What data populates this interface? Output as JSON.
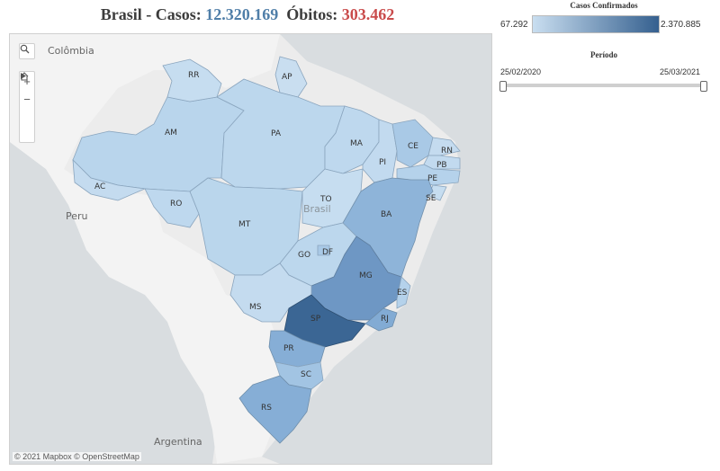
{
  "header": {
    "prefix": "Brasil - Casos: ",
    "cases": "12.320.169",
    "deaths_label": "  Óbitos: ",
    "deaths": "303.462"
  },
  "legend": {
    "title": "Casos Confirmados",
    "min": "67.292",
    "max": "2.370.885",
    "color_low": "#c9def0",
    "color_high": "#35608f"
  },
  "period": {
    "title": "Período",
    "start": "25/02/2020",
    "end": "25/03/2021"
  },
  "map": {
    "attribution": "© 2021 Mapbox  © OpenStreetMap",
    "countries": {
      "colombia": "Colômbia",
      "peru": "Peru",
      "argentina": "Argentina",
      "brasil_watermark": "Brasil"
    },
    "states": {
      "rr": "RR",
      "ap": "AP",
      "am": "AM",
      "pa": "PA",
      "ma": "MA",
      "ce": "CE",
      "rn": "RN",
      "pb": "PB",
      "pe": "PE",
      "pi": "PI",
      "ac": "AC",
      "ro": "RO",
      "to": "TO",
      "se": "SE",
      "ba": "BA",
      "mt": "MT",
      "go": "GO",
      "df": "DF",
      "mg": "MG",
      "es": "ES",
      "ms": "MS",
      "sp": "SP",
      "rj": "RJ",
      "pr": "PR",
      "sc": "SC",
      "rs": "RS"
    },
    "controls": {
      "search_icon": "search-icon",
      "zoom_in": "+",
      "zoom_out": "−",
      "home_icon": "home-icon",
      "play_icon": "play-icon"
    }
  }
}
